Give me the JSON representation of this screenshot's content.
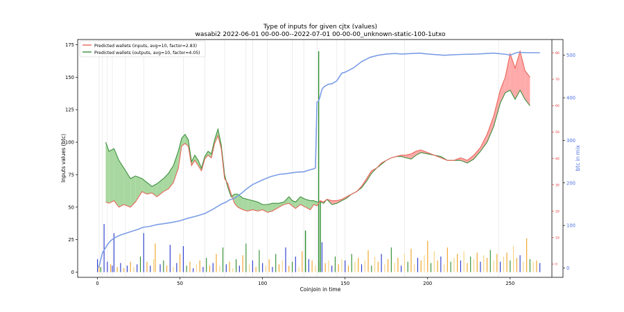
{
  "chart_data": {
    "type": "line",
    "title": "Type of inputs for given cjtx (values)",
    "subtitle": "wasabi2 2022-06-01 00-00-00--2022-07-01 00-00-00_unknown-static-100-1utxo",
    "xlabel": "Coinjoin in time",
    "ylabel": "Inputs values (btc)",
    "ylabel_right": "btc in mix",
    "xlim": [
      -12,
      282
    ],
    "ylim": [
      -4,
      179
    ],
    "ylim_right": [
      -22,
      537
    ],
    "ylim_right_inner": [
      -5,
      85
    ],
    "x_ticks": [
      0,
      50,
      100,
      150,
      200,
      250
    ],
    "y_ticks": [
      0,
      25,
      50,
      75,
      100,
      125,
      150,
      175
    ],
    "y_ticks_right": [
      0,
      100,
      200,
      300,
      400,
      500
    ],
    "y_ticks_right_inner": [
      0,
      10,
      20,
      30,
      40,
      50,
      60,
      70,
      80
    ],
    "legend_position": "top-left",
    "legend": [
      "Predicted wallets (inputs, avg=10, factor=2.83)",
      "Predicted wallets (outputs, avg=10, factor=4.05)"
    ],
    "colors": {
      "inputs_line": "#e8665a",
      "outputs_line": "#3c8f3c",
      "inputs_fill": "#ffaaaa",
      "outputs_fill": "#a8d8a0",
      "btc_in_mix": "#7b9de6",
      "axis_right_outer": "#4a6fe3",
      "axis_right_inner": "#e03030",
      "bar_blue": "#2233cc",
      "bar_orange": "#f0a020",
      "bar_green": "#2a8a2a",
      "bar_yellow": "#f5d27a",
      "vline": "#e4e4e4"
    },
    "series": [
      {
        "x": [
          5,
          7,
          10,
          13,
          16,
          20,
          23,
          27,
          30,
          33,
          36,
          40,
          43,
          46,
          49,
          51,
          53,
          55,
          57,
          59,
          61,
          63,
          65,
          67,
          69,
          71,
          73,
          75,
          77,
          79,
          81,
          83,
          85,
          88,
          91,
          94,
          97,
          100,
          103,
          106,
          110,
          113,
          116,
          118,
          120,
          123,
          126,
          129,
          131,
          133,
          135,
          137,
          139,
          142,
          145,
          148,
          151,
          154,
          157,
          160,
          163,
          166,
          169,
          172,
          175,
          178,
          181,
          184,
          187,
          190,
          193,
          196,
          200,
          204,
          208,
          212,
          216,
          220,
          224,
          228,
          232,
          236,
          240,
          244,
          247,
          250,
          253,
          256,
          259,
          262
        ],
        "inputs": [
          54,
          53,
          55,
          50,
          52,
          50,
          54,
          62,
          60,
          61,
          58,
          62,
          64,
          69,
          80,
          97,
          99,
          97,
          82,
          86,
          82,
          78,
          87,
          90,
          88,
          99,
          105,
          95,
          72,
          68,
          60,
          53,
          50,
          48,
          47,
          48,
          47,
          48,
          46,
          47,
          50,
          52,
          53,
          51,
          49,
          52,
          50,
          48,
          52,
          51,
          55,
          54,
          56,
          55,
          55,
          56,
          58,
          60,
          62,
          66,
          72,
          78,
          80,
          84,
          86,
          88,
          89,
          90,
          90,
          91,
          93,
          94,
          92,
          90,
          88,
          86,
          86,
          88,
          86,
          90,
          96,
          106,
          120,
          140,
          150,
          168,
          157,
          170,
          155,
          150
        ],
        "outputs": [
          100,
          93,
          95,
          86,
          80,
          72,
          74,
          72,
          69,
          66,
          68,
          72,
          76,
          82,
          93,
          103,
          106,
          102,
          85,
          90,
          86,
          80,
          89,
          93,
          91,
          102,
          110,
          98,
          75,
          65,
          58,
          60,
          60,
          57,
          56,
          55,
          54,
          52,
          52,
          53,
          53,
          54,
          58,
          55,
          54,
          58,
          56,
          55,
          55,
          54,
          54,
          53,
          56,
          52,
          53,
          55,
          57,
          60,
          62,
          65,
          70,
          76,
          80,
          83,
          86,
          88,
          89,
          89,
          88,
          87,
          90,
          92,
          91,
          90,
          89,
          86,
          86,
          86,
          84,
          87,
          93,
          100,
          112,
          130,
          138,
          140,
          133,
          140,
          133,
          128
        ]
      }
    ],
    "btc_in_mix": {
      "x": [
        0,
        1,
        2,
        3,
        4,
        5,
        6,
        8,
        10,
        13,
        16,
        20,
        24,
        28,
        32,
        36,
        40,
        45,
        50,
        55,
        60,
        65,
        70,
        75,
        78,
        80,
        83,
        86,
        88,
        90,
        94,
        100,
        105,
        110,
        115,
        120,
        125,
        128,
        131,
        132,
        133,
        134,
        135,
        136,
        137,
        138,
        140,
        142,
        145,
        148,
        150,
        155,
        160,
        165,
        170,
        175,
        180,
        185,
        190,
        195,
        200,
        210,
        220,
        230,
        240,
        248,
        250,
        253,
        255,
        260,
        268
      ],
      "values": [
        1,
        4,
        20,
        35,
        42,
        48,
        55,
        64,
        70,
        76,
        80,
        85,
        90,
        96,
        98,
        102,
        104,
        107,
        111,
        117,
        122,
        128,
        138,
        150,
        155,
        160,
        164,
        172,
        178,
        185,
        196,
        207,
        215,
        220,
        222,
        225,
        226,
        230,
        233,
        235,
        390,
        392,
        405,
        420,
        425,
        428,
        432,
        433,
        440,
        458,
        460,
        470,
        485,
        495,
        500,
        503,
        504,
        503,
        504,
        505,
        503,
        500,
        502,
        503,
        505,
        502,
        500,
        505,
        507,
        506,
        506
      ]
    },
    "bars": {
      "x": [
        0,
        1,
        2,
        4,
        6,
        8,
        9,
        10,
        12,
        14,
        16,
        18,
        20,
        22,
        24,
        26,
        28,
        30,
        32,
        34,
        35,
        38,
        40,
        42,
        44,
        46,
        48,
        50,
        52,
        54,
        56,
        58,
        60,
        62,
        64,
        66,
        68,
        70,
        72,
        74,
        76,
        78,
        80,
        82,
        84,
        86,
        88,
        90,
        92,
        94,
        96,
        98,
        100,
        102,
        104,
        106,
        108,
        110,
        112,
        114,
        116,
        118,
        120,
        122,
        124,
        126,
        128,
        130,
        132,
        134,
        136,
        138,
        140,
        142,
        144,
        146,
        148,
        150,
        152,
        154,
        156,
        158,
        160,
        162,
        164,
        166,
        168,
        170,
        172,
        174,
        176,
        178,
        180,
        182,
        184,
        186,
        188,
        190,
        192,
        194,
        196,
        198,
        200,
        202,
        204,
        206,
        208,
        210,
        212,
        214,
        216,
        218,
        220,
        222,
        224,
        226,
        228,
        230,
        232,
        234,
        236,
        238,
        240,
        242,
        244,
        246,
        248,
        250,
        252,
        254,
        256,
        258,
        260,
        262,
        264,
        266,
        268
      ],
      "values": [
        10,
        6,
        4,
        37,
        8,
        6,
        5,
        30,
        4,
        7,
        3,
        5,
        8,
        4,
        6,
        12,
        30,
        8,
        5,
        10,
        22,
        6,
        9,
        5,
        21,
        4,
        7,
        14,
        20,
        5,
        8,
        3,
        6,
        9,
        4,
        11,
        5,
        7,
        14,
        5,
        19,
        6,
        8,
        3,
        10,
        5,
        13,
        22,
        6,
        9,
        4,
        17,
        7,
        5,
        10,
        4,
        14,
        6,
        9,
        19,
        5,
        8,
        12,
        4,
        16,
        6,
        10,
        9,
        5,
        8,
        23,
        7,
        9,
        5,
        12,
        6,
        10,
        9,
        5,
        14,
        8,
        11,
        6,
        9,
        17,
        5,
        12,
        8,
        14,
        6,
        10,
        19,
        7,
        11,
        5,
        14,
        8,
        18,
        6,
        11,
        9,
        13,
        24,
        7,
        16,
        9,
        12,
        6,
        19,
        8,
        11,
        14,
        9,
        16,
        7,
        12,
        10,
        15,
        8,
        13,
        11,
        17,
        9,
        14,
        8,
        12,
        15,
        9,
        20,
        11,
        13,
        8,
        26,
        10,
        8,
        9,
        7
      ],
      "colors": [
        "blue",
        "orange",
        "green",
        "blue",
        "blue",
        "orange",
        "blue",
        "blue",
        "orange",
        "blue",
        "orange",
        "blue",
        "orange",
        "yellow",
        "blue",
        "green",
        "blue",
        "orange",
        "blue",
        "yellow",
        "orange",
        "blue",
        "green",
        "orange",
        "blue",
        "yellow",
        "blue",
        "orange",
        "blue",
        "green",
        "orange",
        "blue",
        "yellow",
        "orange",
        "blue",
        "green",
        "orange",
        "blue",
        "orange",
        "yellow",
        "green",
        "blue",
        "orange",
        "yellow",
        "green",
        "blue",
        "orange",
        "green",
        "yellow",
        "blue",
        "orange",
        "green",
        "blue",
        "yellow",
        "orange",
        "blue",
        "green",
        "orange",
        "yellow",
        "blue",
        "orange",
        "green",
        "blue",
        "yellow",
        "orange",
        "green",
        "blue",
        "orange",
        "yellow",
        "green",
        "blue",
        "orange",
        "yellow",
        "blue",
        "green",
        "orange",
        "yellow",
        "blue",
        "orange",
        "green",
        "yellow",
        "orange",
        "blue",
        "yellow",
        "orange",
        "green",
        "yellow",
        "orange",
        "blue",
        "yellow",
        "orange",
        "green",
        "yellow",
        "orange",
        "blue",
        "yellow",
        "green",
        "orange",
        "yellow",
        "blue",
        "orange",
        "yellow",
        "orange",
        "green",
        "yellow",
        "orange",
        "blue",
        "yellow",
        "orange",
        "green",
        "yellow",
        "orange",
        "blue",
        "yellow",
        "orange",
        "green",
        "yellow",
        "orange",
        "blue",
        "yellow",
        "orange",
        "green",
        "yellow",
        "orange",
        "blue",
        "yellow",
        "orange",
        "green",
        "yellow",
        "orange",
        "blue",
        "yellow",
        "orange",
        "green",
        "yellow",
        "orange",
        "blue"
      ]
    },
    "spikes": [
      {
        "x": 126,
        "value": 32,
        "color": "green"
      },
      {
        "x": 134,
        "value": 170,
        "color": "green"
      },
      {
        "x": 135,
        "value": 55,
        "color": "green"
      }
    ],
    "vlines_x": [
      1,
      3,
      6,
      9,
      17,
      28,
      52,
      65,
      77,
      90,
      94,
      103,
      118,
      125,
      133,
      145,
      150,
      186,
      243
    ]
  }
}
